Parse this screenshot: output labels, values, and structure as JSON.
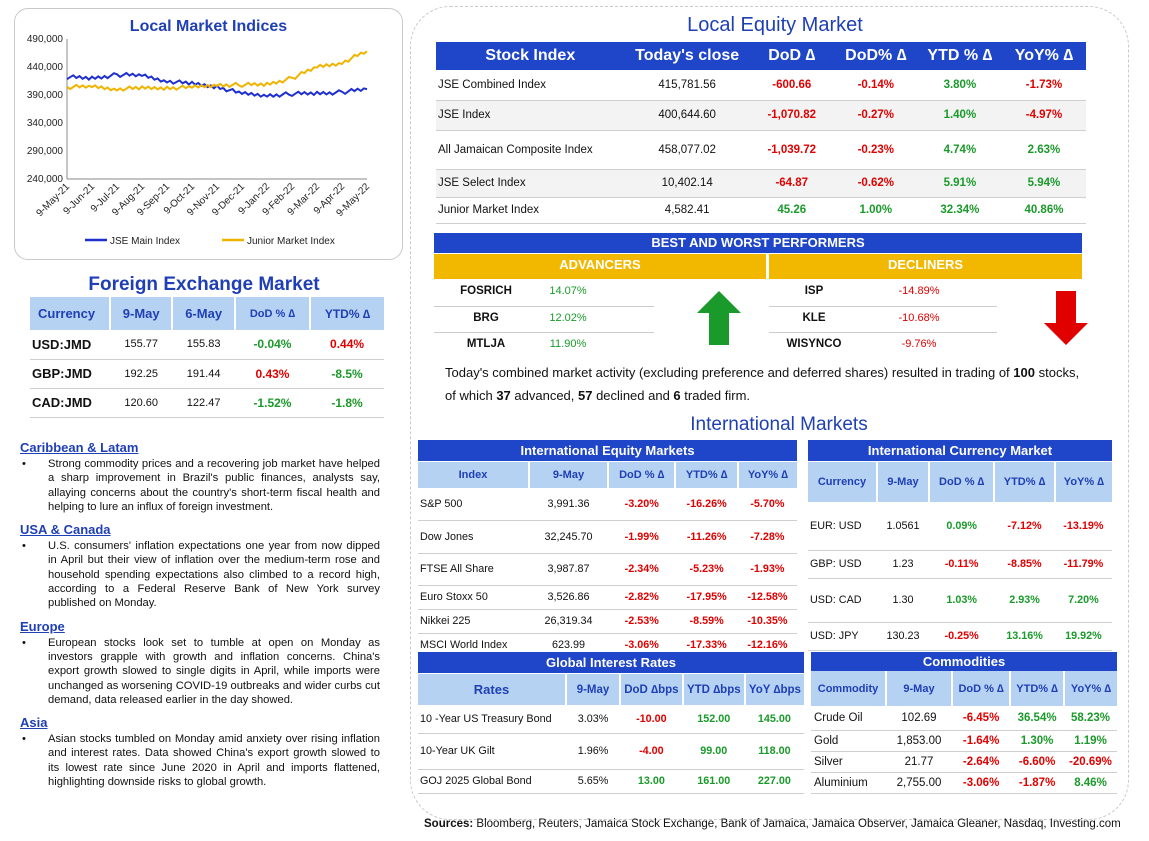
{
  "colors": {
    "blue": "#1f45c9",
    "light_blue": "#b6d2f2",
    "gold": "#f2b800",
    "green": "#1a9a2a",
    "red": "#e00000",
    "jse_line": "#1f2fd0",
    "junior_line": "#f0b400"
  },
  "indices_chart": {
    "title": "Local Market Indices",
    "legend": [
      "JSE Main Index",
      "Junior Market Index"
    ]
  },
  "chart_data": {
    "type": "line",
    "title": "Local Market Indices",
    "ylim": [
      240000,
      490000
    ],
    "yticks": [
      "490,000",
      "440,000",
      "390,000",
      "340,000",
      "290,000",
      "240,000"
    ],
    "ytick_values": [
      490000,
      440000,
      390000,
      340000,
      290000,
      240000
    ],
    "x": [
      "9-May-21",
      "9-Jun-21",
      "9-Jul-21",
      "9-Aug-21",
      "9-Sep-21",
      "9-Oct-21",
      "9-Nov-21",
      "9-Dec-21",
      "9-Jan-22",
      "9-Feb-22",
      "9-Mar-22",
      "9-Apr-22",
      "9-May-22"
    ],
    "series": [
      {
        "name": "JSE Main Index",
        "values": [
          422000,
          420000,
          426000,
          425000,
          415000,
          410000,
          405000,
          392000,
          389000,
          392000,
          393000,
          395000,
          400600
        ]
      },
      {
        "name": "Junior Market Index",
        "values": [
          404000,
          405000,
          401000,
          402000,
          403000,
          403000,
          408000,
          408000,
          409000,
          420000,
          440000,
          448000,
          468000
        ]
      }
    ]
  },
  "fx": {
    "title": "Foreign Exchange Market",
    "headers": [
      "Currency",
      "9-May",
      "6-May",
      "DoD % ∆",
      "YTD% ∆"
    ],
    "rows": [
      {
        "cur": "USD:JMD",
        "a": "155.77",
        "b": "155.83",
        "dod": "-0.04%",
        "ytd": "0.44%",
        "dod_c": "pos",
        "ytd_c": "neg"
      },
      {
        "cur": "GBP:JMD",
        "a": "192.25",
        "b": "191.44",
        "dod": "0.43%",
        "ytd": "-8.5%",
        "dod_c": "neg",
        "ytd_c": "pos"
      },
      {
        "cur": "CAD:JMD",
        "a": "120.60",
        "b": "122.47",
        "dod": "-1.52%",
        "ytd": "-1.8%",
        "dod_c": "pos",
        "ytd_c": "pos"
      }
    ]
  },
  "news": [
    {
      "heading": "Caribbean & Latam",
      "text": "Strong commodity prices and a recovering job market have helped a sharp improvement in Brazil's public finances, analysts say, allaying concerns about the country's short-term fiscal health and helping to lure an influx of foreign investment."
    },
    {
      "heading": "USA & Canada",
      "text": "U.S. consumers' inflation expectations one year from now dipped in April but their view of inflation over the medium-term rose and household spending expectations also climbed to a record high, according to a Federal Reserve Bank of New York survey published on Monday."
    },
    {
      "heading": "Europe",
      "text": "European stocks look set to tumble at open on Monday as investors grapple with growth and inflation concerns. China's export growth slowed to single digits in April, while imports were unchanged as worsening COVID-19 outbreaks and wider curbs cut demand, data released earlier in the day showed."
    },
    {
      "heading": "Asia",
      "text": "Asian stocks tumbled on Monday amid anxiety over rising inflation and interest rates. Data showed China's export growth slowed to its lowest rate since June 2020 in April and imports flattened, highlighting downside risks to global growth."
    }
  ],
  "local_equity": {
    "title": "Local Equity Market",
    "headers": [
      "Stock Index",
      "Today's close",
      "DoD  ∆",
      "DoD% ∆",
      "YTD % ∆",
      "YoY% ∆"
    ],
    "rows": [
      {
        "name": "JSE Combined Index",
        "close": "415,781.56",
        "dod": "-600.66",
        "dodp": "-0.14%",
        "ytd": "3.80%",
        "yoy": "-1.73%",
        "c": [
          "neg",
          "neg",
          "pos",
          "neg"
        ]
      },
      {
        "name": "JSE Index",
        "close": "400,644.60",
        "dod": "-1,070.82",
        "dodp": "-0.27%",
        "ytd": "1.40%",
        "yoy": "-4.97%",
        "c": [
          "neg",
          "neg",
          "pos",
          "neg"
        ]
      },
      {
        "name": "All Jamaican Composite Index",
        "close": "458,077.02",
        "dod": "-1,039.72",
        "dodp": "-0.23%",
        "ytd": "4.74%",
        "yoy": "2.63%",
        "c": [
          "neg",
          "neg",
          "pos",
          "pos"
        ]
      },
      {
        "name": "JSE Select Index",
        "close": "10,402.14",
        "dod": "-64.87",
        "dodp": "-0.62%",
        "ytd": "5.91%",
        "yoy": "5.94%",
        "c": [
          "neg",
          "neg",
          "pos",
          "pos"
        ]
      },
      {
        "name": "Junior Market Index",
        "close": "4,582.41",
        "dod": "45.26",
        "dodp": "1.00%",
        "ytd": "32.34%",
        "yoy": "40.86%",
        "c": [
          "pos",
          "pos",
          "pos",
          "pos"
        ]
      }
    ]
  },
  "performers": {
    "title": "BEST AND WORST PERFORMERS",
    "adv_label": "ADVANCERS",
    "dec_label": "DECLINERS",
    "advancers": [
      {
        "s": "FOSRICH",
        "v": "14.07%"
      },
      {
        "s": "BRG",
        "v": "12.02%"
      },
      {
        "s": "MTLJA",
        "v": "11.90%"
      }
    ],
    "decliners": [
      {
        "s": "ISP",
        "v": "-14.89%"
      },
      {
        "s": "KLE",
        "v": "-10.68%"
      },
      {
        "s": "WISYNCO",
        "v": "-9.76%"
      }
    ]
  },
  "summary": {
    "p1": "Today's combined market activity (excluding preference and deferred shares) resulted in trading of ",
    "n1": "100",
    "p2": " stocks, of which ",
    "n2": "37",
    "p3": " advanced, ",
    "n3": "57",
    "p4": " declined and ",
    "n4": "6",
    "p5": " traded firm."
  },
  "intl_title": "International Markets",
  "intl_equity": {
    "title": "International Equity Markets",
    "headers": [
      "Index",
      "9-May",
      "DoD % ∆",
      "YTD% ∆",
      "YoY% ∆"
    ],
    "rows": [
      {
        "n": "S&P 500",
        "v": "3,991.36",
        "d": "-3.20%",
        "y": "-16.26%",
        "yy": "-5.70%"
      },
      {
        "n": "Dow Jones",
        "v": "32,245.70",
        "d": "-1.99%",
        "y": "-11.26%",
        "yy": "-7.28%"
      },
      {
        "n": "FTSE All Share",
        "v": "3,987.87",
        "d": "-2.34%",
        "y": "-5.23%",
        "yy": "-1.93%"
      },
      {
        "n": "Euro Stoxx 50",
        "v": "3,526.86",
        "d": "-2.82%",
        "y": "-17.95%",
        "yy": "-12.58%"
      },
      {
        "n": "Nikkei 225",
        "v": "26,319.34",
        "d": "-2.53%",
        "y": "-8.59%",
        "yy": "-10.35%"
      },
      {
        "n": "MSCI World Index",
        "v": "623.99",
        "d": "-3.06%",
        "y": "-17.33%",
        "yy": "-12.16%"
      }
    ]
  },
  "intl_currency": {
    "title": "International Currency Market",
    "headers": [
      "Currency",
      "9-May",
      "DoD % ∆",
      "YTD% ∆",
      "YoY% ∆"
    ],
    "rows": [
      {
        "n": "EUR: USD",
        "v": "1.0561",
        "d": "0.09%",
        "y": "-7.12%",
        "yy": "-13.19%",
        "c": [
          "pos",
          "neg",
          "neg"
        ]
      },
      {
        "n": "GBP: USD",
        "v": "1.23",
        "d": "-0.11%",
        "y": "-8.85%",
        "yy": "-11.79%",
        "c": [
          "neg",
          "neg",
          "neg"
        ]
      },
      {
        "n": "USD: CAD",
        "v": "1.30",
        "d": "1.03%",
        "y": "2.93%",
        "yy": "7.20%",
        "c": [
          "pos",
          "pos",
          "pos"
        ]
      },
      {
        "n": "USD: JPY",
        "v": "130.23",
        "d": "-0.25%",
        "y": "13.16%",
        "yy": "19.92%",
        "c": [
          "neg",
          "pos",
          "pos"
        ]
      }
    ]
  },
  "rates": {
    "title": "Global Interest Rates",
    "headers": [
      "Rates",
      "9-May",
      "DoD ∆bps",
      "YTD ∆bps",
      "YoY ∆bps"
    ],
    "rows": [
      {
        "n": "10 -Year US Treasury Bond",
        "v": "3.03%",
        "d": "-10.00",
        "y": "152.00",
        "yy": "145.00",
        "c": [
          "neg",
          "pos",
          "pos"
        ]
      },
      {
        "n": "10-Year UK Gilt",
        "v": "1.96%",
        "d": "-4.00",
        "y": "99.00",
        "yy": "118.00",
        "c": [
          "neg",
          "pos",
          "pos"
        ]
      },
      {
        "n": "GOJ 2025 Global Bond",
        "v": "5.65%",
        "d": "13.00",
        "y": "161.00",
        "yy": "227.00",
        "c": [
          "pos",
          "pos",
          "pos"
        ]
      }
    ]
  },
  "commodities": {
    "title": "Commodities",
    "headers": [
      "Commodity",
      "9-May",
      "DoD % ∆",
      "YTD% ∆",
      "YoY% ∆"
    ],
    "rows": [
      {
        "n": "Crude Oil",
        "v": "102.69",
        "d": "-6.45%",
        "y": "36.54%",
        "yy": "58.23%",
        "c": [
          "neg",
          "pos",
          "pos"
        ]
      },
      {
        "n": "Gold",
        "v": "1,853.00",
        "d": "-1.64%",
        "y": "1.30%",
        "yy": "1.19%",
        "c": [
          "neg",
          "pos",
          "pos"
        ]
      },
      {
        "n": "Silver",
        "v": "21.77",
        "d": "-2.64%",
        "y": "-6.60%",
        "yy": "-20.69%",
        "c": [
          "neg",
          "neg",
          "neg"
        ]
      },
      {
        "n": "Aluminium",
        "v": "2,755.00",
        "d": "-3.06%",
        "y": "-1.87%",
        "yy": "8.46%",
        "c": [
          "neg",
          "neg",
          "pos"
        ]
      }
    ]
  },
  "sources": {
    "label": "Sources:",
    "text": " Bloomberg, Reuters, Jamaica Stock Exchange, Bank of Jamaica, Jamaica Observer, Jamaica Gleaner, Nasdaq, Investing.com"
  }
}
